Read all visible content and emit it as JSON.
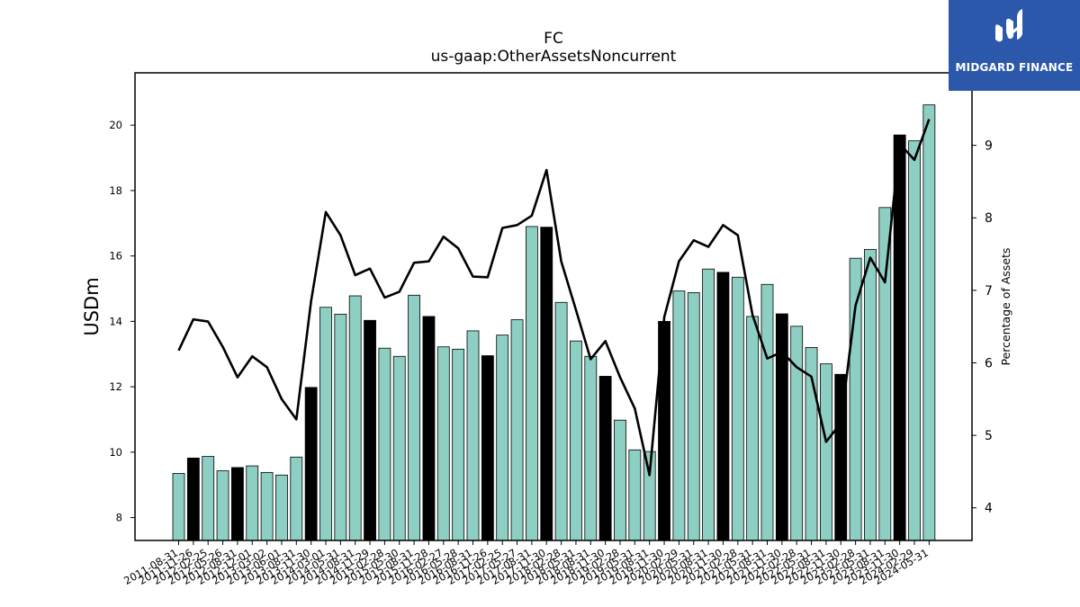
{
  "chart_data": {
    "type": "bar",
    "title": "FC",
    "subtitle": "us-gaap:OtherAssetsNoncurrent",
    "ylabel": "USDm",
    "y2label": "Percentage of Assets",
    "ylim": [
      7.3,
      21.6
    ],
    "y2lim": [
      3.55,
      10.0
    ],
    "yticks": [
      8,
      10,
      12,
      14,
      16,
      18,
      20
    ],
    "y2ticks": [
      4,
      5,
      6,
      7,
      8,
      9
    ],
    "grid": false,
    "categories": [
      "2011-08-31",
      "2011-11-26",
      "2012-02-25",
      "2012-05-26",
      "2012-08-31",
      "2012-12-01",
      "2013-03-02",
      "2013-06-01",
      "2013-08-31",
      "2013-11-30",
      "2014-03-01",
      "2014-05-31",
      "2014-08-31",
      "2014-11-29",
      "2015-02-28",
      "2015-05-30",
      "2015-08-31",
      "2015-11-28",
      "2016-02-27",
      "2016-05-28",
      "2016-08-31",
      "2016-11-26",
      "2017-02-25",
      "2017-05-27",
      "2017-08-31",
      "2017-11-30",
      "2018-02-28",
      "2018-05-31",
      "2018-08-31",
      "2018-11-30",
      "2019-02-28",
      "2019-05-31",
      "2019-08-31",
      "2019-11-30",
      "2020-02-29",
      "2020-05-31",
      "2020-08-31",
      "2020-11-30",
      "2021-02-28",
      "2021-05-31",
      "2021-08-31",
      "2021-11-30",
      "2022-02-28",
      "2022-05-31",
      "2022-08-31",
      "2022-11-30",
      "2023-02-28",
      "2023-05-31",
      "2023-08-31",
      "2023-11-30",
      "2024-02-29",
      "2024-05-31"
    ],
    "series": [
      {
        "role": "bar",
        "values": [
          9.35,
          9.82,
          9.87,
          9.43,
          9.53,
          9.58,
          9.38,
          9.3,
          9.85,
          11.98,
          14.43,
          14.22,
          14.78,
          14.03,
          13.18,
          12.93,
          14.8,
          14.15,
          13.22,
          13.15,
          13.71,
          12.95,
          13.58,
          14.05,
          16.9,
          16.88,
          14.58,
          13.4,
          12.93,
          12.32,
          10.98,
          10.07,
          10.02,
          14.0,
          14.93,
          14.88,
          15.6,
          15.5,
          15.35,
          14.15,
          15.13,
          14.23,
          13.85,
          13.2,
          12.7,
          12.38,
          15.93,
          16.2,
          17.48,
          19.7,
          19.52,
          20.62
        ],
        "highlight": [
          1,
          4,
          9,
          13,
          17,
          21,
          25,
          29,
          33,
          37,
          41,
          45,
          49
        ],
        "color": "#8ecfc3",
        "highlight_color": "#000000"
      },
      {
        "role": "line",
        "axis": "right",
        "values": [
          6.17,
          6.6,
          6.57,
          6.22,
          5.8,
          6.09,
          5.94,
          5.5,
          5.22,
          6.85,
          8.08,
          7.76,
          7.21,
          7.3,
          6.9,
          6.98,
          7.38,
          7.4,
          7.74,
          7.58,
          7.19,
          7.18,
          7.86,
          7.9,
          8.03,
          8.66,
          7.4,
          6.73,
          6.05,
          6.3,
          5.8,
          5.37,
          4.45,
          6.63,
          7.4,
          7.69,
          7.6,
          7.9,
          7.76,
          6.66,
          6.06,
          6.15,
          5.94,
          5.81,
          4.91,
          5.17,
          6.79,
          7.45,
          7.11,
          9.02,
          8.8,
          9.36
        ],
        "color": "#000000"
      }
    ]
  },
  "logo": {
    "text": "MIDGARD FINANCE"
  }
}
